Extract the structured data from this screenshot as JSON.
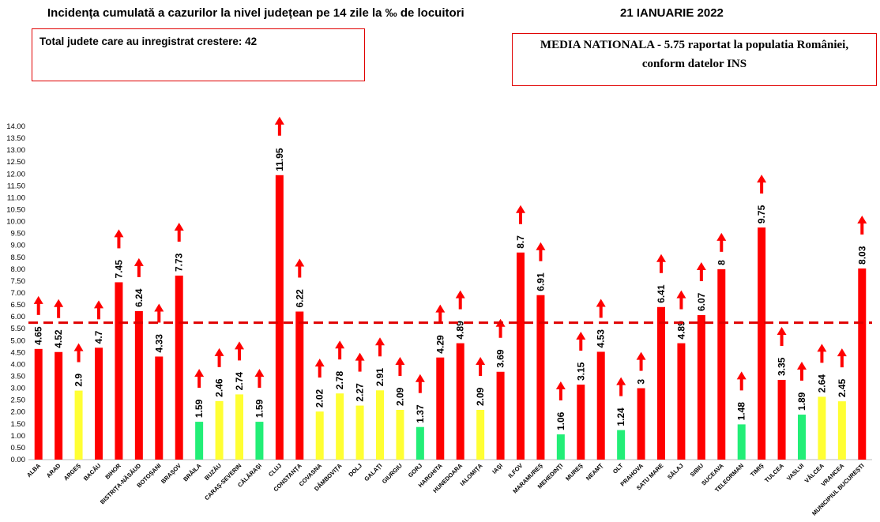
{
  "header": {
    "title": "Incidența cumulată a cazurilor la nivel județean pe 14 zile la ‰ de locuitori",
    "date": "21 IANUARIE 2022"
  },
  "info_boxes": {
    "total_increase": "Total judete care au inregistrat crestere: 42",
    "national_average_line1": "MEDIA NATIONALA - 5.75  raportat la populatia României,",
    "national_average_line2": "conform datelor INS"
  },
  "colors": {
    "red": "#ff0000",
    "yellow": "#ffff33",
    "green": "#22ee77",
    "average_line": "#e00000"
  },
  "chart_data": {
    "type": "bar",
    "title": "Incidența cumulată a cazurilor la nivel județean pe 14 zile la ‰ de locuitori",
    "ylim": [
      0,
      14
    ],
    "yticks": [
      "0.00",
      "0.50",
      "1.00",
      "1.50",
      "2.00",
      "2.50",
      "3.00",
      "3.50",
      "4.00",
      "4.50",
      "5.00",
      "5.50",
      "6.00",
      "6.50",
      "7.00",
      "7.50",
      "8.00",
      "8.50",
      "9.00",
      "9.50",
      "10.00",
      "10.50",
      "11.00",
      "11.50",
      "12.00",
      "12.50",
      "13.00",
      "13.50",
      "14.00"
    ],
    "average_line": 5.75,
    "grid": false,
    "categories": [
      "ALBA",
      "ARAD",
      "ARGEȘ",
      "BACĂU",
      "BIHOR",
      "BISTRIȚA-NĂSĂUD",
      "BOTOȘANI",
      "BRAȘOV",
      "BRĂILA",
      "BUZĂU",
      "CARAȘ-SEVERIN",
      "CĂLĂRAȘI",
      "CLUJ",
      "CONSTANȚA",
      "COVASNA",
      "DÂMBOVIȚA",
      "DOLJ",
      "GALAȚI",
      "GIURGIU",
      "GORJ",
      "HARGHITA",
      "HUNEDOARA",
      "IALOMIȚA",
      "IAȘI",
      "ILFOV",
      "MARAMUREȘ",
      "MEHEDINȚI",
      "MUREȘ",
      "NEAMȚ",
      "OLT",
      "PRAHOVA",
      "SATU MARE",
      "SĂLAJ",
      "SIBIU",
      "SUCEAVA",
      "TELEORMAN",
      "TIMIȘ",
      "TULCEA",
      "VASLUI",
      "VÂLCEA",
      "VRANCEA",
      "MUNICIPIUL BUCUREȘTI"
    ],
    "values": [
      4.65,
      4.52,
      2.9,
      4.7,
      7.45,
      6.24,
      4.33,
      7.73,
      1.59,
      2.46,
      2.74,
      1.59,
      11.95,
      6.22,
      2.02,
      2.78,
      2.27,
      2.91,
      2.09,
      1.37,
      4.29,
      4.89,
      2.09,
      3.69,
      8.7,
      6.91,
      1.06,
      3.15,
      4.53,
      1.24,
      3,
      6.41,
      4.89,
      6.07,
      8,
      1.48,
      9.75,
      3.35,
      1.89,
      2.64,
      2.45,
      8.03
    ],
    "labels": [
      "4.65",
      "4.52",
      "2.9",
      "4.7",
      "7.45",
      "6.24",
      "4.33",
      "7.73",
      "1.59",
      "2.46",
      "2.74",
      "1.59",
      "11.95",
      "6.22",
      "2.02",
      "2.78",
      "2.27",
      "2.91",
      "2.09",
      "1.37",
      "4.29",
      "4.89",
      "2.09",
      "3.69",
      "8.7",
      "6.91",
      "1.06",
      "3.15",
      "4.53",
      "1.24",
      "3",
      "6.41",
      "4.89",
      "6.07",
      "8",
      "1.48",
      "9.75",
      "3.35",
      "1.89",
      "2.64",
      "2.45",
      "8.03"
    ],
    "bar_colors": [
      "red",
      "red",
      "yellow",
      "red",
      "red",
      "red",
      "red",
      "red",
      "green",
      "yellow",
      "yellow",
      "green",
      "red",
      "red",
      "yellow",
      "yellow",
      "yellow",
      "yellow",
      "yellow",
      "green",
      "red",
      "red",
      "yellow",
      "red",
      "red",
      "red",
      "green",
      "red",
      "red",
      "green",
      "red",
      "red",
      "red",
      "red",
      "red",
      "green",
      "red",
      "red",
      "green",
      "yellow",
      "yellow",
      "red"
    ],
    "increase_arrows": [
      true,
      true,
      true,
      true,
      true,
      true,
      true,
      true,
      true,
      true,
      true,
      true,
      true,
      true,
      true,
      true,
      true,
      true,
      true,
      true,
      true,
      true,
      true,
      true,
      true,
      true,
      true,
      true,
      true,
      true,
      true,
      true,
      true,
      true,
      true,
      true,
      true,
      true,
      true,
      true,
      true,
      true
    ]
  }
}
